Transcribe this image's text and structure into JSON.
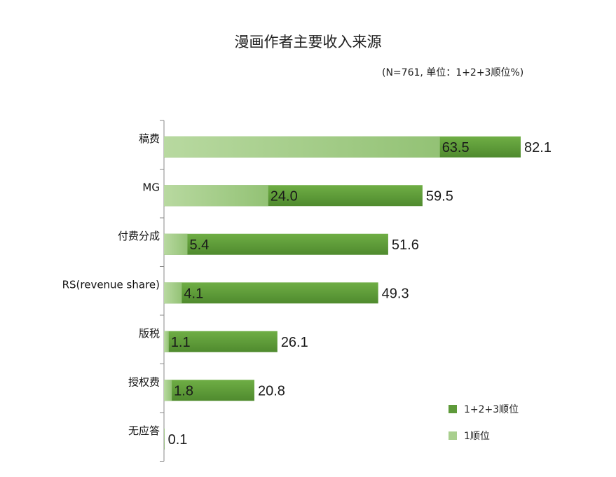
{
  "chart_data": {
    "type": "bar",
    "orientation": "horizontal",
    "title": "漫画作者主要收入来源",
    "subtitle": "(N=761, 单位：1+2+3顺位%)",
    "categories": [
      "稿费",
      "MG",
      "付费分成",
      "RS(revenue share)",
      "版税",
      "授权费",
      "无应答"
    ],
    "series": [
      {
        "name": "1+2+3顺位",
        "values": [
          82.1,
          59.5,
          51.6,
          49.3,
          26.1,
          20.8,
          0.1
        ],
        "color": "#5e9a3a"
      },
      {
        "name": "1顺位",
        "values": [
          63.5,
          24.0,
          5.4,
          4.1,
          1.1,
          1.8,
          null
        ],
        "color": "#a9cf8e"
      }
    ],
    "xlim": [
      0,
      100
    ],
    "grid": false,
    "legend_position": "bottom-right"
  }
}
